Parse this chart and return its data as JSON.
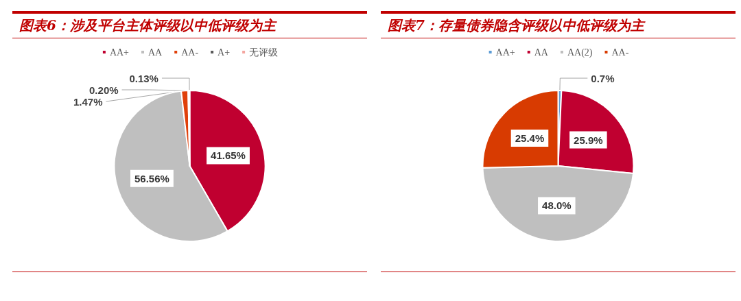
{
  "chart_data": [
    {
      "type": "pie",
      "title": "图表6：涉及平台主体评级以中低评级为主",
      "categories": [
        "AA+",
        "AA",
        "AA-",
        "A+",
        "无评级"
      ],
      "values": [
        41.65,
        56.56,
        1.47,
        0.2,
        0.13
      ],
      "colors": [
        "#c00030",
        "#bfbfbf",
        "#e0400a",
        "#595959",
        "#f4a6a0"
      ],
      "value_labels": [
        "41.65%",
        "56.56%",
        "1.47%",
        "0.20%",
        "0.13%"
      ],
      "legend": "top"
    },
    {
      "type": "pie",
      "title": "图表7：存量债券隐含评级以中低评级为主",
      "categories": [
        "AA+",
        "AA",
        "AA(2)",
        "AA-"
      ],
      "values": [
        0.7,
        25.9,
        48.0,
        25.4
      ],
      "colors": [
        "#5b9bd5",
        "#c00030",
        "#bfbfbf",
        "#d83b01"
      ],
      "value_labels": [
        "0.7%",
        "25.9%",
        "48.0%",
        "25.4%"
      ],
      "legend": "top"
    }
  ]
}
